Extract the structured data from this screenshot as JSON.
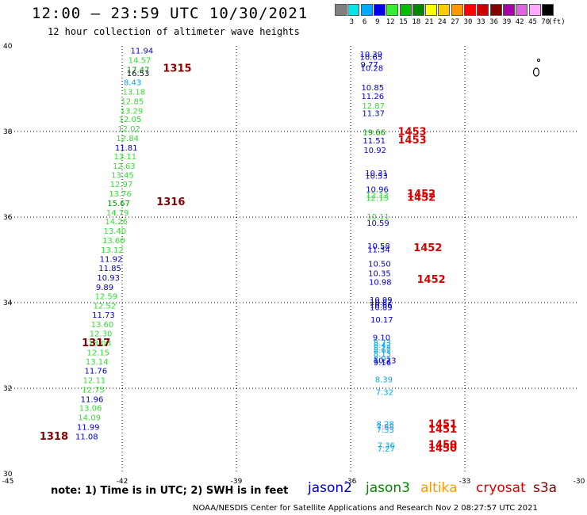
{
  "header": {
    "title": "12:00 – 23:59 UTC 10/30/2021",
    "subtitle": "12 hour collection of altimeter wave heights"
  },
  "colorbar": {
    "unit": "(ft)",
    "bins": [
      {
        "label": "3",
        "color": "#7f7f7f"
      },
      {
        "label": "6",
        "color": "#00e6e6"
      },
      {
        "label": "9",
        "color": "#00aaff"
      },
      {
        "label": "12",
        "color": "#0000e6"
      },
      {
        "label": "15",
        "color": "#33ee33"
      },
      {
        "label": "18",
        "color": "#00c000"
      },
      {
        "label": "21",
        "color": "#008800"
      },
      {
        "label": "24",
        "color": "#ffff00"
      },
      {
        "label": "27",
        "color": "#ffcc00"
      },
      {
        "label": "30",
        "color": "#ff9900"
      },
      {
        "label": "33",
        "color": "#ff0000"
      },
      {
        "label": "36",
        "color": "#cc0000"
      },
      {
        "label": "39",
        "color": "#880000"
      },
      {
        "label": "42",
        "color": "#aa00aa"
      },
      {
        "label": "45",
        "color": "#dd66dd"
      },
      {
        "label": "70",
        "color": "#ffaaff"
      }
    ],
    "top_color": "#000000"
  },
  "footer": {
    "note": "note:  1) Time is in UTC;  2) SWH is in feet",
    "credit": "NOAA/NESDIS Center for Satellite Applications and Research    Nov  2 08:27:57 UTC 2021",
    "satellites": [
      {
        "name": "jason2",
        "color": "#0000cc"
      },
      {
        "name": "jason3",
        "color": "#008800"
      },
      {
        "name": "altika",
        "color": "#ff9900"
      },
      {
        "name": "cryosat",
        "color": "#dd0000"
      },
      {
        "name": "s3a",
        "color": "#880000"
      }
    ]
  },
  "chart_data": {
    "type": "scatter",
    "xlim": [
      -45,
      -30
    ],
    "ylim": [
      30,
      40
    ],
    "x_ticks": [
      "-45",
      "-42",
      "-39",
      "-36",
      "-33",
      "-30"
    ],
    "y_ticks": [
      "30",
      "32",
      "34",
      "36",
      "38",
      "40"
    ],
    "grid": true,
    "colors": {
      "a": "#0000cc",
      "b": "#33dd33",
      "c": "#009900",
      "d": "#00aaee",
      "e": "#111111",
      "t1": "#880000",
      "t2": "#dd0000"
    },
    "points": [
      {
        "x": -41.78,
        "y": 39.82,
        "label": "11.94",
        "c": "a"
      },
      {
        "x": -41.84,
        "y": 39.6,
        "label": "14.57",
        "c": "b"
      },
      {
        "x": -41.88,
        "y": 39.38,
        "label": "17.47",
        "c": "c"
      },
      {
        "x": -41.88,
        "y": 39.3,
        "label": "16.53",
        "c": "e"
      },
      {
        "x": -41.96,
        "y": 39.08,
        "label": "8.43",
        "c": "d"
      },
      {
        "x": -41.99,
        "y": 38.86,
        "label": "13.18",
        "c": "b"
      },
      {
        "x": -42.03,
        "y": 38.64,
        "label": "12.85",
        "c": "b"
      },
      {
        "x": -42.05,
        "y": 38.42,
        "label": "13.29",
        "c": "b"
      },
      {
        "x": -42.09,
        "y": 38.22,
        "label": "12.05",
        "c": "b"
      },
      {
        "x": -42.12,
        "y": 38.0,
        "label": "12.02",
        "c": "b"
      },
      {
        "x": -42.16,
        "y": 37.78,
        "label": "12.84",
        "c": "b"
      },
      {
        "x": -42.19,
        "y": 37.56,
        "label": "11.81",
        "c": "a"
      },
      {
        "x": -42.22,
        "y": 37.35,
        "label": "13.11",
        "c": "b"
      },
      {
        "x": -42.25,
        "y": 37.13,
        "label": "12.63",
        "c": "b"
      },
      {
        "x": -42.29,
        "y": 36.92,
        "label": "13.45",
        "c": "b"
      },
      {
        "x": -42.32,
        "y": 36.7,
        "label": "12.97",
        "c": "b"
      },
      {
        "x": -42.35,
        "y": 36.48,
        "label": "13.76",
        "c": "b"
      },
      {
        "x": -42.39,
        "y": 36.26,
        "label": "15.67",
        "c": "c"
      },
      {
        "x": -42.42,
        "y": 36.04,
        "label": "14.79",
        "c": "b"
      },
      {
        "x": -42.45,
        "y": 35.83,
        "label": "14.26",
        "c": "b"
      },
      {
        "x": -42.49,
        "y": 35.61,
        "label": "13.40",
        "c": "b"
      },
      {
        "x": -42.52,
        "y": 35.39,
        "label": "13.60",
        "c": "b"
      },
      {
        "x": -42.56,
        "y": 35.17,
        "label": "13.12",
        "c": "b"
      },
      {
        "x": -42.59,
        "y": 34.95,
        "label": "11.92",
        "c": "a"
      },
      {
        "x": -42.62,
        "y": 34.74,
        "label": "11.85",
        "c": "a"
      },
      {
        "x": -42.66,
        "y": 34.52,
        "label": "10.93",
        "c": "a"
      },
      {
        "x": -42.69,
        "y": 34.3,
        "label": "9.89",
        "c": "a"
      },
      {
        "x": -42.72,
        "y": 34.08,
        "label": "12.59",
        "c": "b"
      },
      {
        "x": -42.76,
        "y": 33.86,
        "label": "12.52",
        "c": "b"
      },
      {
        "x": -42.79,
        "y": 33.65,
        "label": "11.73",
        "c": "a"
      },
      {
        "x": -42.82,
        "y": 33.43,
        "label": "13.60",
        "c": "b"
      },
      {
        "x": -42.86,
        "y": 33.21,
        "label": "12.30",
        "c": "b"
      },
      {
        "x": -42.89,
        "y": 32.99,
        "label": "13.08",
        "c": "b"
      },
      {
        "x": -42.93,
        "y": 32.77,
        "label": "12.15",
        "c": "b"
      },
      {
        "x": -42.96,
        "y": 32.56,
        "label": "13.14",
        "c": "b"
      },
      {
        "x": -42.99,
        "y": 32.34,
        "label": "11.76",
        "c": "a"
      },
      {
        "x": -43.03,
        "y": 32.12,
        "label": "12.11",
        "c": "b"
      },
      {
        "x": -43.06,
        "y": 31.9,
        "label": "12.75",
        "c": "b"
      },
      {
        "x": -43.09,
        "y": 31.68,
        "label": "11.96",
        "c": "a"
      },
      {
        "x": -43.13,
        "y": 31.47,
        "label": "13.06",
        "c": "b"
      },
      {
        "x": -43.16,
        "y": 31.25,
        "label": "14.09",
        "c": "b"
      },
      {
        "x": -43.19,
        "y": 31.03,
        "label": "11.99",
        "c": "a"
      },
      {
        "x": -43.23,
        "y": 30.81,
        "label": "11.08",
        "c": "a"
      },
      {
        "x": -35.76,
        "y": 39.74,
        "label": "10.39",
        "c": "a"
      },
      {
        "x": -35.76,
        "y": 39.68,
        "label": "10.65",
        "c": "a"
      },
      {
        "x": -35.74,
        "y": 39.5,
        "label": "9.77",
        "c": "a"
      },
      {
        "x": -35.74,
        "y": 39.42,
        "label": "10.28",
        "c": "a"
      },
      {
        "x": -35.72,
        "y": 38.96,
        "label": "10.85",
        "c": "a"
      },
      {
        "x": -35.72,
        "y": 38.76,
        "label": "11.26",
        "c": "a"
      },
      {
        "x": -35.7,
        "y": 38.54,
        "label": "12.87",
        "c": "b"
      },
      {
        "x": -35.7,
        "y": 38.36,
        "label": "11.37",
        "c": "a"
      },
      {
        "x": -35.68,
        "y": 37.92,
        "label": "19.66",
        "c": "c"
      },
      {
        "x": -35.68,
        "y": 37.72,
        "label": "11.51",
        "c": "a"
      },
      {
        "x": -35.66,
        "y": 37.5,
        "label": "10.92",
        "c": "a"
      },
      {
        "x": -35.62,
        "y": 36.96,
        "label": "10.31",
        "c": "a"
      },
      {
        "x": -35.62,
        "y": 36.9,
        "label": "10.53",
        "c": "a"
      },
      {
        "x": -35.6,
        "y": 36.58,
        "label": "10.96",
        "c": "a"
      },
      {
        "x": -35.6,
        "y": 36.44,
        "label": "12.13",
        "c": "b"
      },
      {
        "x": -35.6,
        "y": 36.38,
        "label": "12.15",
        "c": "b"
      },
      {
        "x": -35.58,
        "y": 35.94,
        "label": "10.11",
        "c": "b"
      },
      {
        "x": -35.58,
        "y": 35.8,
        "label": "10.59",
        "c": "a"
      },
      {
        "x": -35.56,
        "y": 35.26,
        "label": "10.58",
        "c": "a"
      },
      {
        "x": -35.56,
        "y": 35.18,
        "label": "11.34",
        "c": "a"
      },
      {
        "x": -35.54,
        "y": 34.84,
        "label": "10.50",
        "c": "a"
      },
      {
        "x": -35.54,
        "y": 34.62,
        "label": "10.35",
        "c": "a"
      },
      {
        "x": -35.52,
        "y": 34.42,
        "label": "10.98",
        "c": "a"
      },
      {
        "x": -35.5,
        "y": 34.0,
        "label": "10.99",
        "c": "a"
      },
      {
        "x": -35.5,
        "y": 33.94,
        "label": "10.82",
        "c": "a"
      },
      {
        "x": -35.5,
        "y": 33.88,
        "label": "10.66",
        "c": "a"
      },
      {
        "x": -35.5,
        "y": 33.82,
        "label": "10.89",
        "c": "a"
      },
      {
        "x": -35.48,
        "y": 33.54,
        "label": "10.17",
        "c": "a"
      },
      {
        "x": -35.42,
        "y": 33.12,
        "label": "9.10",
        "c": "a"
      },
      {
        "x": -35.4,
        "y": 33.0,
        "label": "8.73",
        "c": "d"
      },
      {
        "x": -35.4,
        "y": 32.94,
        "label": "8.42",
        "c": "d"
      },
      {
        "x": -35.4,
        "y": 32.88,
        "label": "8.12",
        "c": "d"
      },
      {
        "x": -35.4,
        "y": 32.82,
        "label": "8.62",
        "c": "d"
      },
      {
        "x": -35.4,
        "y": 32.74,
        "label": "8.13",
        "c": "d"
      },
      {
        "x": -35.4,
        "y": 32.62,
        "label": "8.91",
        "c": "d"
      },
      {
        "x": -35.4,
        "y": 32.58,
        "label": "10.23",
        "c": "a"
      },
      {
        "x": -35.4,
        "y": 32.54,
        "label": "9.16",
        "c": "a"
      },
      {
        "x": -35.36,
        "y": 32.14,
        "label": "8.39",
        "c": "d"
      },
      {
        "x": -35.34,
        "y": 31.84,
        "label": "7.32",
        "c": "d"
      },
      {
        "x": -35.32,
        "y": 31.1,
        "label": "8.28",
        "c": "d"
      },
      {
        "x": -35.32,
        "y": 31.04,
        "label": "7.88",
        "c": "d"
      },
      {
        "x": -35.32,
        "y": 30.96,
        "label": "7.33",
        "c": "d"
      },
      {
        "x": -35.3,
        "y": 30.6,
        "label": "7.36",
        "c": "d"
      },
      {
        "x": -35.3,
        "y": 30.52,
        "label": "7.27",
        "c": "d"
      }
    ],
    "time_labels": [
      {
        "x": -40.93,
        "y": 39.4,
        "label": "1315",
        "c": "t1"
      },
      {
        "x": -41.1,
        "y": 36.28,
        "label": "1316",
        "c": "t1"
      },
      {
        "x": -43.06,
        "y": 32.98,
        "label": "1317",
        "c": "t1"
      },
      {
        "x": -44.17,
        "y": 30.8,
        "label": "1318",
        "c": "t1"
      },
      {
        "x": -34.76,
        "y": 37.92,
        "label": "1453",
        "c": "t2"
      },
      {
        "x": -34.76,
        "y": 37.72,
        "label": "1453",
        "c": "t2"
      },
      {
        "x": -34.52,
        "y": 36.46,
        "label": "1452",
        "c": "t2"
      },
      {
        "x": -34.52,
        "y": 36.38,
        "label": "1452",
        "c": "t2"
      },
      {
        "x": -34.35,
        "y": 35.2,
        "label": "1452",
        "c": "t2"
      },
      {
        "x": -34.26,
        "y": 34.46,
        "label": "1452",
        "c": "t2"
      },
      {
        "x": -33.96,
        "y": 31.08,
        "label": "1451",
        "c": "t2"
      },
      {
        "x": -33.96,
        "y": 30.96,
        "label": "1451",
        "c": "t2"
      },
      {
        "x": -33.96,
        "y": 30.6,
        "label": "1450",
        "c": "t2"
      },
      {
        "x": -33.96,
        "y": 30.52,
        "label": "1450",
        "c": "t2"
      }
    ]
  }
}
